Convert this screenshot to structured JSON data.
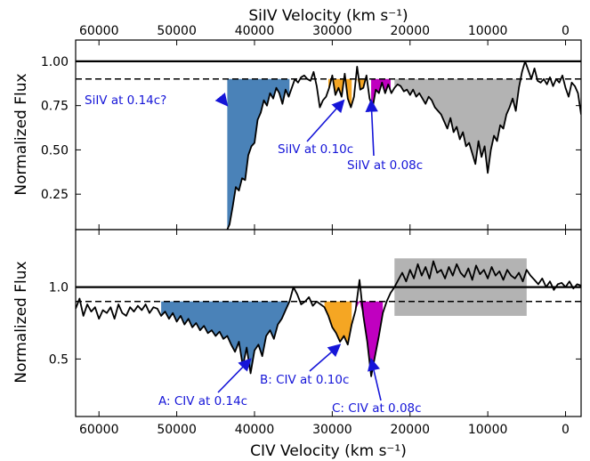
{
  "chart_data": [
    {
      "type": "line",
      "panel": "top",
      "title": "",
      "xlabel": "CIV Velocity (km s⁻¹)",
      "top_xlabel": "SiIV Velocity (km s⁻¹)",
      "ylabel": "Normalized Flux",
      "xlim": [
        63000,
        -2000
      ],
      "ylim": [
        0.05,
        1.12
      ],
      "x_ticks": [
        60000,
        50000,
        40000,
        30000,
        20000,
        10000,
        0
      ],
      "top_x_ticks": [
        60000,
        50000,
        40000,
        30000,
        20000,
        10000,
        0
      ],
      "y_ticks": [
        0.25,
        0.5,
        0.75,
        1.0
      ],
      "y_tick_labels": [
        "0.25",
        "0.50",
        "0.75",
        "1.00"
      ],
      "continuum_level": 1.0,
      "threshold_level": 0.9,
      "color_line": "#000000",
      "series": [
        {
          "x": [
            43500,
            43200,
            42800,
            42400,
            42000,
            41600,
            41200,
            40800,
            40400,
            40000,
            39600,
            39200,
            38800,
            38400,
            38000,
            37600,
            37200,
            36800,
            36400,
            36000,
            35600,
            35200,
            34800,
            34400,
            34000,
            33600,
            33200,
            32800,
            32400,
            32000,
            31600,
            31200,
            30800,
            30400,
            30000,
            29600,
            29200,
            28800,
            28400,
            28000,
            27600,
            27200,
            26800,
            26400,
            26000,
            25600,
            25200,
            24800,
            24400,
            24000,
            23600,
            23200,
            22800,
            22400,
            22000,
            21600,
            21200,
            20800,
            20400,
            20000,
            19600,
            19200,
            18800,
            18400,
            18000,
            17600,
            17200,
            16800,
            16400,
            16000,
            15600,
            15200,
            14800,
            14400,
            14000,
            13600,
            13200,
            12800,
            12400,
            12000,
            11600,
            11200,
            10800,
            10400,
            10000,
            9600,
            9200,
            8800,
            8400,
            8000,
            7600,
            7200,
            6800,
            6400,
            6000,
            5600,
            5200,
            4800,
            4400,
            4000,
            3600,
            3200,
            2800,
            2400,
            2000,
            1600,
            1200,
            800,
            400,
            0,
            -400,
            -800,
            -1200,
            -1600,
            -2000
          ],
          "y": [
            0.05,
            0.08,
            0.18,
            0.29,
            0.27,
            0.34,
            0.33,
            0.47,
            0.52,
            0.54,
            0.67,
            0.71,
            0.78,
            0.75,
            0.82,
            0.79,
            0.85,
            0.82,
            0.76,
            0.84,
            0.8,
            0.85,
            0.9,
            0.88,
            0.91,
            0.92,
            0.9,
            0.89,
            0.94,
            0.86,
            0.74,
            0.78,
            0.8,
            0.85,
            0.92,
            0.81,
            0.85,
            0.8,
            0.93,
            0.79,
            0.74,
            0.8,
            0.97,
            0.84,
            0.85,
            0.92,
            0.79,
            0.74,
            0.84,
            0.82,
            0.88,
            0.82,
            0.87,
            0.82,
            0.85,
            0.87,
            0.86,
            0.83,
            0.84,
            0.81,
            0.84,
            0.8,
            0.82,
            0.79,
            0.76,
            0.8,
            0.78,
            0.74,
            0.72,
            0.7,
            0.66,
            0.62,
            0.68,
            0.6,
            0.63,
            0.56,
            0.6,
            0.52,
            0.54,
            0.48,
            0.42,
            0.55,
            0.46,
            0.52,
            0.37,
            0.5,
            0.58,
            0.55,
            0.64,
            0.62,
            0.7,
            0.74,
            0.79,
            0.72,
            0.85,
            0.94,
            1.0,
            0.95,
            0.9,
            0.96,
            0.89,
            0.88,
            0.9,
            0.87,
            0.91,
            0.86,
            0.9,
            0.88,
            0.92,
            0.85,
            0.8,
            0.88,
            0.86,
            0.82,
            0.7
          ]
        }
      ],
      "regions": [
        {
          "x_start": 43500,
          "x_end": 35500,
          "color": "#4a82b8"
        },
        {
          "x_start": 30500,
          "x_end": 27500,
          "color": "#f5a623"
        },
        {
          "x_start": 27000,
          "x_end": 25500,
          "color": "#f5a623"
        },
        {
          "x_start": 25000,
          "x_end": 22500,
          "color": "#c000c0"
        },
        {
          "x_start": 22000,
          "x_end": 5000,
          "color": "#b3b3b3"
        }
      ],
      "annotations": [
        {
          "text": "SiIV at 0.14c?",
          "arrow_to": [
            43500,
            0.75
          ],
          "color": "#1515d8"
        },
        {
          "text": "SiIV at 0.10c",
          "arrow_to": [
            28500,
            0.78
          ],
          "color": "#1515d8"
        },
        {
          "text": "SiIV at 0.08c",
          "arrow_to": [
            25000,
            0.78
          ],
          "color": "#1515d8"
        }
      ]
    },
    {
      "type": "line",
      "panel": "bottom",
      "title": "",
      "xlabel": "CIV Velocity (km s⁻¹)",
      "ylabel": "Normalized Flux",
      "xlim": [
        63000,
        -2000
      ],
      "ylim": [
        0.1,
        1.4
      ],
      "x_ticks": [
        60000,
        50000,
        40000,
        30000,
        20000,
        10000,
        0
      ],
      "y_ticks": [
        0.5,
        1.0
      ],
      "y_tick_labels": [
        "0.5",
        "1.0"
      ],
      "continuum_level": 1.0,
      "threshold_level": 0.9,
      "color_line": "#000000",
      "series": [
        {
          "x": [
            63000,
            62500,
            62000,
            61500,
            61000,
            60500,
            60000,
            59500,
            59000,
            58500,
            58000,
            57500,
            57000,
            56500,
            56000,
            55500,
            55000,
            54500,
            54000,
            53500,
            53000,
            52500,
            52000,
            51500,
            51000,
            50500,
            50000,
            49500,
            49000,
            48500,
            48000,
            47500,
            47000,
            46500,
            46000,
            45500,
            45000,
            44500,
            44000,
            43500,
            43000,
            42500,
            42000,
            41500,
            41000,
            40500,
            40000,
            39500,
            39000,
            38500,
            38000,
            37500,
            37000,
            36500,
            36000,
            35500,
            35000,
            34500,
            34000,
            33500,
            33000,
            32500,
            32000,
            31500,
            31000,
            30500,
            30000,
            29500,
            29000,
            28500,
            28000,
            27500,
            27000,
            26500,
            26000,
            25500,
            25000,
            24500,
            24000,
            23500,
            23000,
            22500,
            22000,
            21500,
            21000,
            20500,
            20000,
            19500,
            19000,
            18500,
            18000,
            17500,
            17000,
            16500,
            16000,
            15500,
            15000,
            14500,
            14000,
            13500,
            13000,
            12500,
            12000,
            11500,
            11000,
            10500,
            10000,
            9500,
            9000,
            8500,
            8000,
            7500,
            7000,
            6500,
            6000,
            5500,
            5000,
            4500,
            4000,
            3500,
            3000,
            2500,
            2000,
            1500,
            1000,
            500,
            0,
            -500,
            -1000,
            -1500,
            -2000
          ],
          "y": [
            0.85,
            0.92,
            0.8,
            0.88,
            0.83,
            0.86,
            0.78,
            0.84,
            0.82,
            0.86,
            0.78,
            0.88,
            0.82,
            0.8,
            0.86,
            0.83,
            0.87,
            0.84,
            0.88,
            0.82,
            0.86,
            0.85,
            0.8,
            0.83,
            0.78,
            0.82,
            0.76,
            0.8,
            0.74,
            0.78,
            0.72,
            0.75,
            0.7,
            0.73,
            0.68,
            0.7,
            0.66,
            0.69,
            0.64,
            0.66,
            0.6,
            0.55,
            0.62,
            0.45,
            0.58,
            0.4,
            0.56,
            0.6,
            0.52,
            0.66,
            0.7,
            0.64,
            0.74,
            0.78,
            0.84,
            0.9,
            1.0,
            0.95,
            0.88,
            0.9,
            0.93,
            0.87,
            0.9,
            0.88,
            0.86,
            0.8,
            0.72,
            0.68,
            0.62,
            0.66,
            0.6,
            0.74,
            0.84,
            1.05,
            0.8,
            0.62,
            0.38,
            0.52,
            0.66,
            0.82,
            0.9,
            0.96,
            1.0,
            1.05,
            1.1,
            1.04,
            1.12,
            1.06,
            1.16,
            1.08,
            1.14,
            1.06,
            1.18,
            1.1,
            1.12,
            1.06,
            1.14,
            1.08,
            1.16,
            1.1,
            1.07,
            1.13,
            1.05,
            1.15,
            1.09,
            1.12,
            1.06,
            1.14,
            1.08,
            1.11,
            1.05,
            1.12,
            1.08,
            1.06,
            1.1,
            1.04,
            1.12,
            1.08,
            1.05,
            1.02,
            1.06,
            1.0,
            1.04,
            0.98,
            1.02,
            1.03,
            1.0,
            1.04,
            0.99,
            1.02,
            1.01
          ]
        }
      ],
      "regions": [
        {
          "x_start": 52000,
          "x_end": 35500,
          "color": "#4a82b8"
        },
        {
          "x_start": 31000,
          "x_end": 27500,
          "color": "#f5a623"
        },
        {
          "x_start": 27000,
          "x_end": 23500,
          "color": "#c000c0"
        }
      ],
      "box": {
        "x_start": 22000,
        "x_end": 5000,
        "y_start": 0.8,
        "y_end": 1.2,
        "color": "#b3b3b3"
      },
      "annotations": [
        {
          "text": "A: CIV at 0.14c",
          "arrow_to": [
            40500,
            0.5
          ],
          "color": "#1515d8"
        },
        {
          "text": "B: CIV at 0.10c",
          "arrow_to": [
            29000,
            0.6
          ],
          "color": "#1515d8"
        },
        {
          "text": "C: CIV at 0.08c",
          "arrow_to": [
            25000,
            0.5
          ],
          "color": "#1515d8"
        }
      ]
    }
  ]
}
